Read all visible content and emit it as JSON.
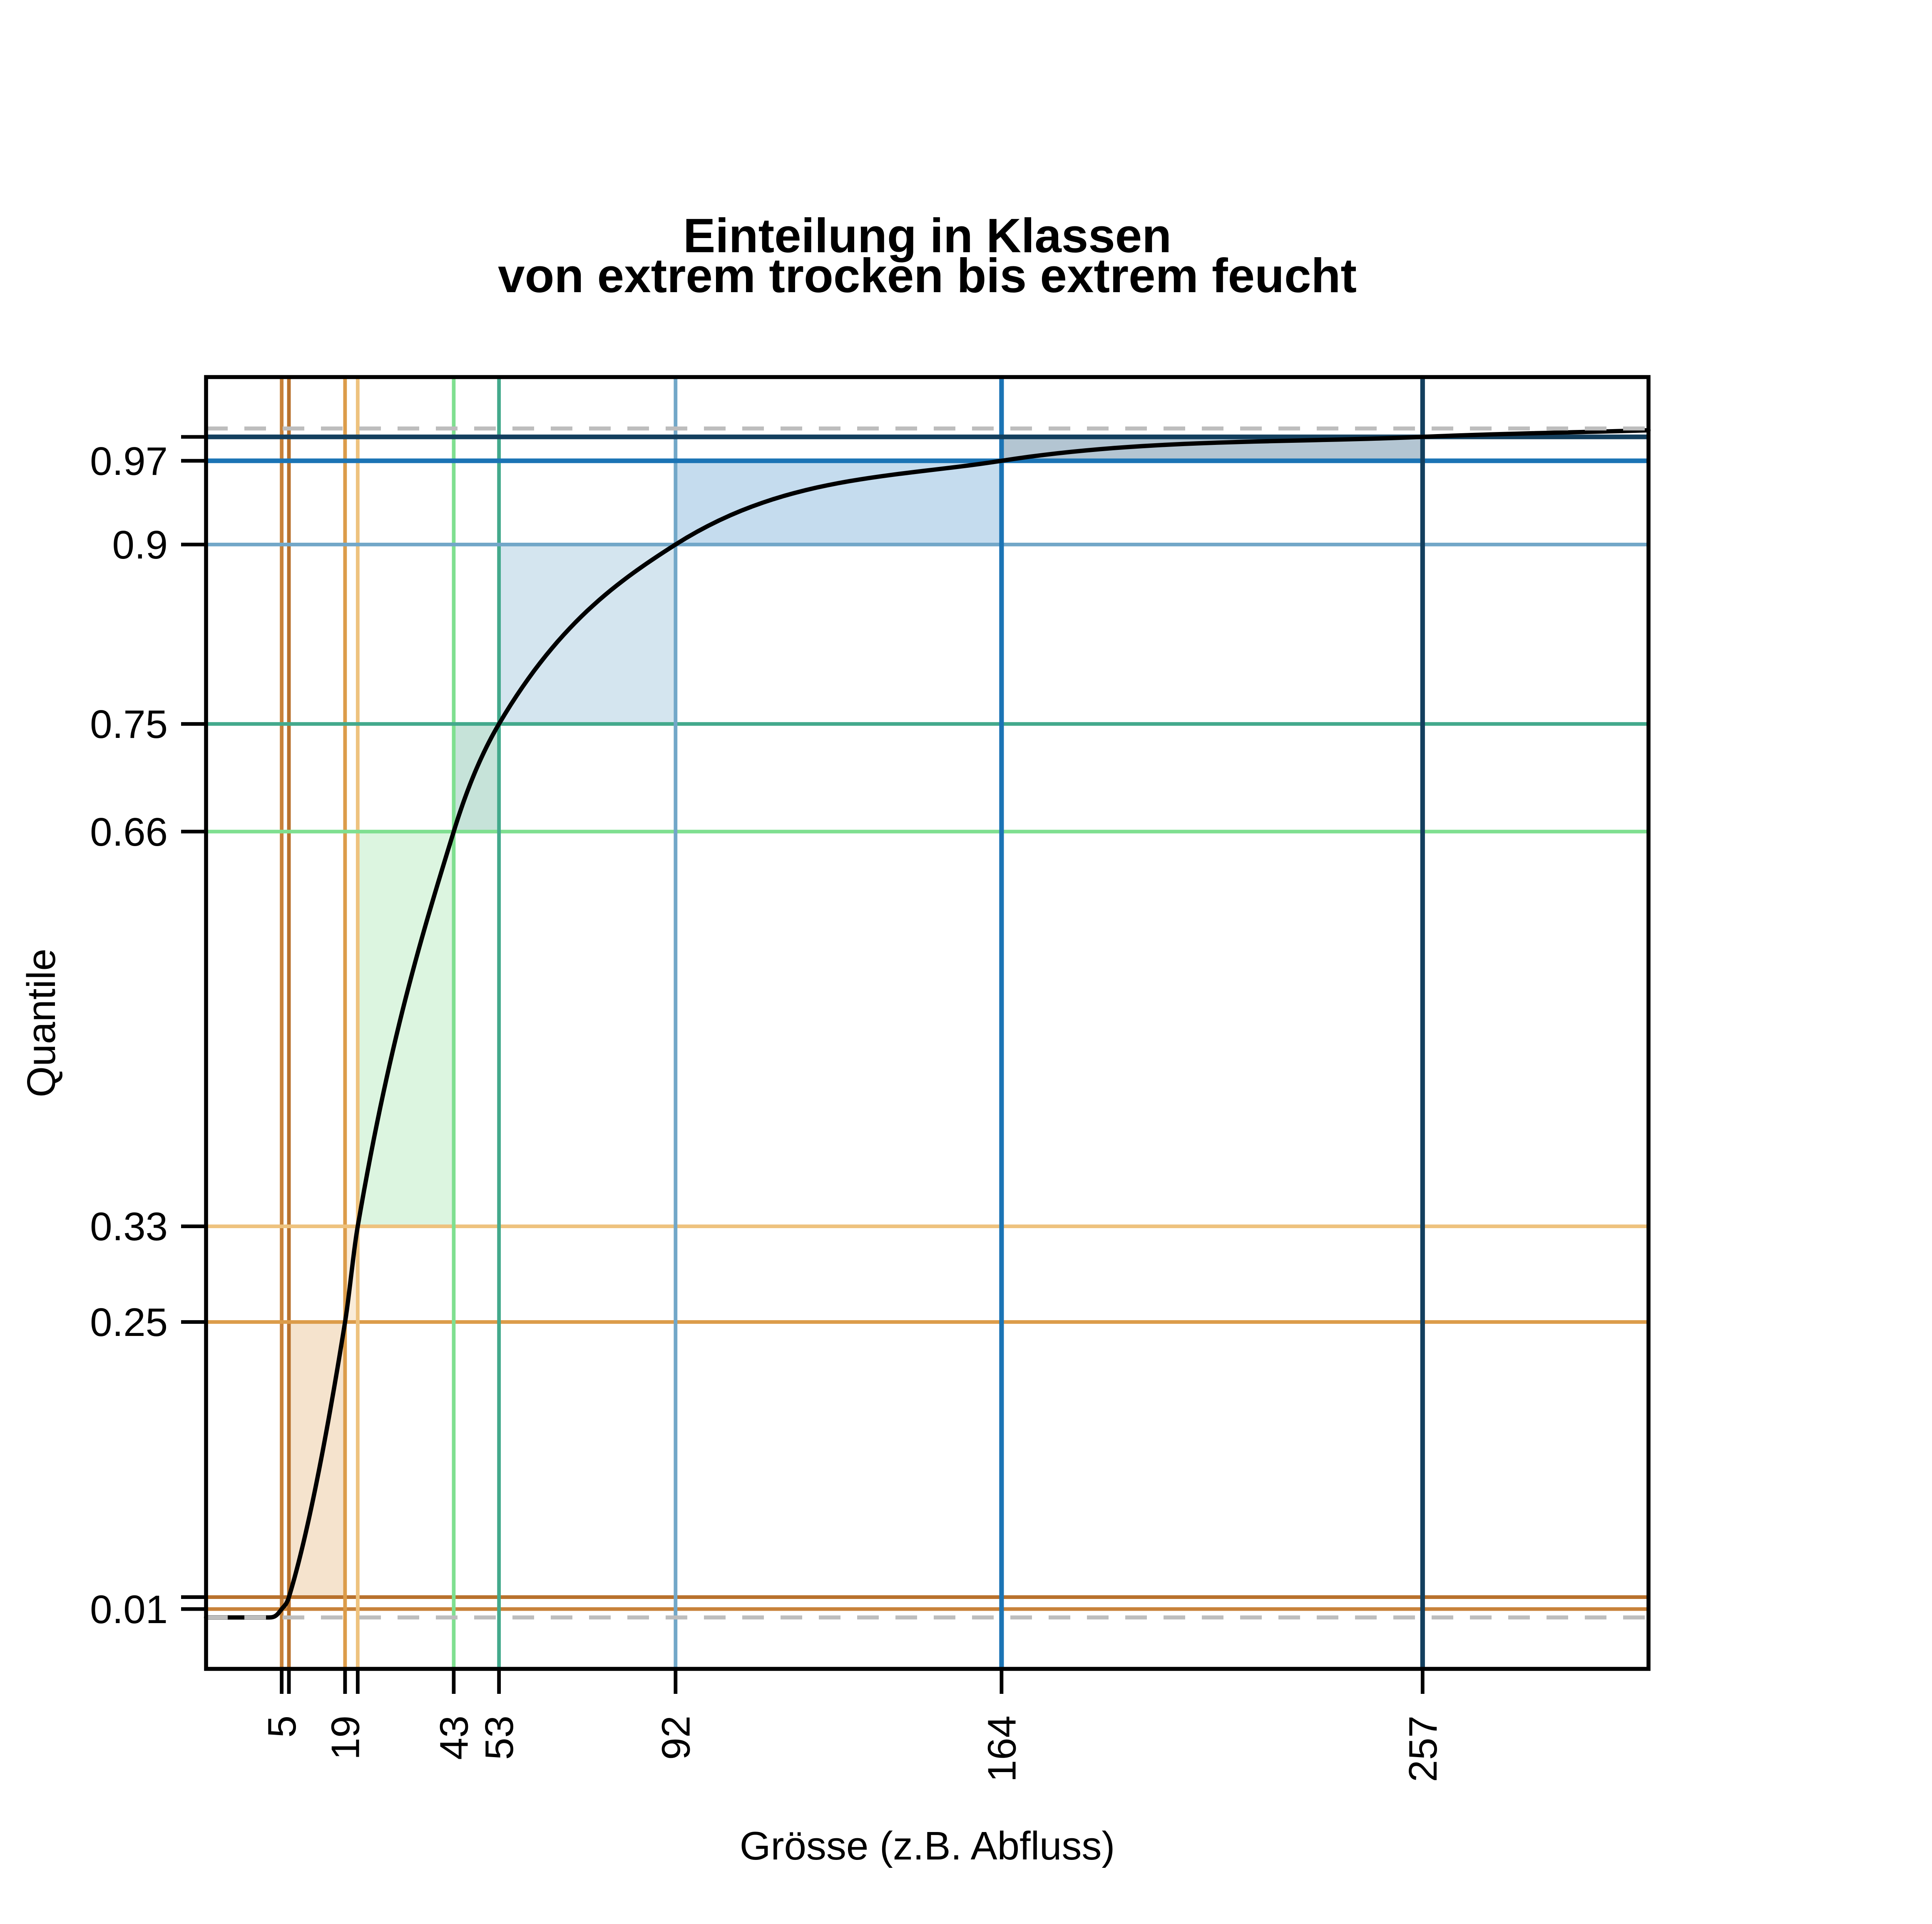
{
  "page": {
    "background": "#ffffff"
  },
  "chart_data": {
    "type": "line",
    "subtype": "empirical-cdf-with-quantile-classes",
    "title_line1": "Einteilung in Klassen",
    "title_line2": "von extrem trocken bis extrem feucht",
    "xlabel": "Grösse (z.B. Abfluss)",
    "ylabel": "Quantile",
    "grid": false,
    "legend_position": "none",
    "curve_color": "#000000",
    "box_color": "#000000",
    "tick_color": "#000000",
    "dashed_color": "#bdbdbd",
    "dashed_levels": [
      0.003,
      0.997
    ],
    "x_range": [
      -11.7,
      306.9
    ],
    "y_range": [
      -0.04,
      1.04
    ],
    "x_tick_labels": [
      "5",
      "19",
      "43",
      "53",
      "92",
      "164",
      "257"
    ],
    "y_tick_labels": [
      "0.01",
      "0.25",
      "0.33",
      "0.66",
      "0.75",
      "0.9",
      "0.97"
    ],
    "classes": [
      {
        "p": 0.01,
        "x": 5,
        "y_label": "0.01",
        "x_label": "5",
        "color": "#c8823a",
        "width": 2.2
      },
      {
        "p": 0.02,
        "x": 6.6,
        "y_label": "",
        "x_label": "",
        "color": "#b8712c",
        "width": 2.2
      },
      {
        "p": 0.25,
        "x": 19,
        "y_label": "0.25",
        "x_label": "19",
        "color": "#dc9c4a",
        "width": 2.2
      },
      {
        "p": 0.33,
        "x": 21.8,
        "y_label": "0.33",
        "x_label": "",
        "color": "#eec27e",
        "width": 2.2
      },
      {
        "p": 0.66,
        "x": 43,
        "y_label": "0.66",
        "x_label": "43",
        "color": "#7fdf90",
        "width": 2.2
      },
      {
        "p": 0.75,
        "x": 53,
        "y_label": "0.75",
        "x_label": "53",
        "color": "#43a98c",
        "width": 2.2
      },
      {
        "p": 0.9,
        "x": 92,
        "y_label": "0.9",
        "x_label": "92",
        "color": "#72a7c8",
        "width": 2.2
      },
      {
        "p": 0.97,
        "x": 164,
        "y_label": "0.97",
        "x_label": "164",
        "color": "#1b74b5",
        "width": 2.8
      },
      {
        "p": 0.99,
        "x": 257,
        "y_label": "",
        "x_label": "257",
        "color": "#133f5e",
        "width": 2.8
      }
    ],
    "regions": [
      {
        "x1": 5,
        "p1": 0.01,
        "x2": 6.6,
        "p2": 0.02,
        "fill": "#e6d0bb"
      },
      {
        "x1": 6.6,
        "p1": 0.02,
        "x2": 19,
        "p2": 0.25,
        "fill": "#f5e3cd"
      },
      {
        "x1": 19,
        "p1": 0.25,
        "x2": 21.8,
        "p2": 0.33,
        "fill": "#faecd9"
      },
      {
        "x1": 21.8,
        "p1": 0.33,
        "x2": 43,
        "p2": 0.66,
        "fill": "#dcf5e0"
      },
      {
        "x1": 43,
        "p1": 0.66,
        "x2": 53,
        "p2": 0.75,
        "fill": "#c6e3d9"
      },
      {
        "x1": 53,
        "p1": 0.75,
        "x2": 92,
        "p2": 0.9,
        "fill": "#d4e5ef"
      },
      {
        "x1": 92,
        "p1": 0.9,
        "x2": 164,
        "p2": 0.97,
        "fill": "#c5dcee"
      },
      {
        "x1": 164,
        "p1": 0.97,
        "x2": 257,
        "p2": 0.99,
        "fill": "#b3c5d2"
      }
    ],
    "curve_points": [
      [
        -11.7,
        0.003
      ],
      [
        2,
        0.003
      ],
      [
        3.5,
        0.004
      ],
      [
        5,
        0.01
      ],
      [
        6.6,
        0.02
      ],
      [
        19,
        0.25
      ],
      [
        21.8,
        0.33
      ],
      [
        43,
        0.66
      ],
      [
        53,
        0.75
      ],
      [
        92,
        0.9
      ],
      [
        164,
        0.97
      ],
      [
        257,
        0.99
      ],
      [
        306.9,
        0.9955
      ]
    ]
  }
}
